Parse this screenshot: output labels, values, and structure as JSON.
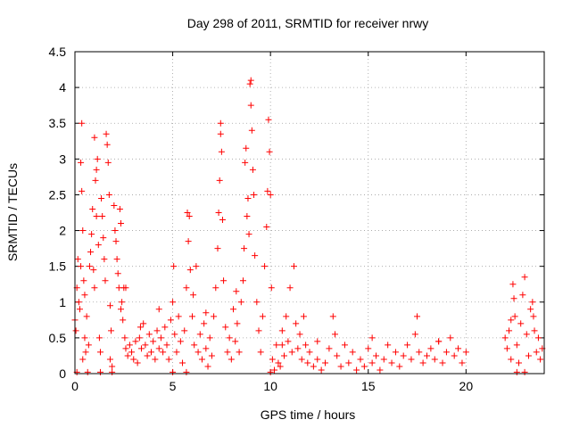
{
  "chart_data": {
    "type": "scatter",
    "title": "Day 298 of 2011, SRMTID for receiver nrwy",
    "xlabel": "GPS time / hours",
    "ylabel": "SRMTID / TECUs",
    "xlim": [
      0,
      24
    ],
    "ylim": [
      0,
      4.5
    ],
    "xticks": [
      "0",
      "5",
      "10",
      "15",
      "20"
    ],
    "yticks": [
      "0",
      "0.5",
      "1",
      "1.5",
      "2",
      "2.5",
      "3",
      "3.5",
      "4",
      "4.5"
    ],
    "grid": true,
    "marker": "plus",
    "color": "#ff0000",
    "series": [
      {
        "points": [
          [
            0.0,
            0.75
          ],
          [
            0.05,
            0.6
          ],
          [
            0.1,
            1.2
          ],
          [
            0.15,
            1.6
          ],
          [
            0.2,
            1.0
          ],
          [
            0.25,
            0.9
          ],
          [
            0.3,
            1.5
          ],
          [
            0.35,
            3.5
          ],
          [
            0.3,
            2.95
          ],
          [
            0.35,
            2.55
          ],
          [
            0.4,
            2.0
          ],
          [
            0.45,
            1.3
          ],
          [
            0.5,
            1.1
          ],
          [
            0.4,
            0.2
          ],
          [
            0.5,
            0.5
          ],
          [
            0.55,
            0.3
          ],
          [
            0.6,
            0.8
          ],
          [
            0.7,
            0.4
          ],
          [
            0.75,
            1.5
          ],
          [
            0.8,
            1.7
          ],
          [
            0.85,
            1.95
          ],
          [
            0.9,
            2.3
          ],
          [
            0.95,
            1.45
          ],
          [
            1.0,
            1.2
          ],
          [
            1.0,
            3.3
          ],
          [
            1.05,
            2.7
          ],
          [
            1.1,
            2.85
          ],
          [
            1.15,
            3.0
          ],
          [
            1.1,
            2.2
          ],
          [
            1.2,
            1.8
          ],
          [
            1.25,
            0.5
          ],
          [
            1.3,
            0.3
          ],
          [
            1.35,
            2.45
          ],
          [
            1.4,
            2.2
          ],
          [
            1.45,
            1.9
          ],
          [
            1.5,
            1.6
          ],
          [
            1.55,
            1.3
          ],
          [
            1.6,
            3.35
          ],
          [
            1.65,
            3.2
          ],
          [
            1.7,
            2.95
          ],
          [
            1.75,
            2.5
          ],
          [
            1.8,
            0.95
          ],
          [
            1.85,
            0.6
          ],
          [
            1.8,
            0.2
          ],
          [
            1.9,
            0.1
          ],
          [
            2.0,
            2.35
          ],
          [
            2.05,
            2.0
          ],
          [
            2.1,
            1.85
          ],
          [
            2.15,
            1.6
          ],
          [
            2.2,
            1.4
          ],
          [
            2.25,
            1.2
          ],
          [
            2.3,
            2.3
          ],
          [
            2.35,
            2.1
          ],
          [
            2.4,
            1.0
          ],
          [
            2.45,
            0.75
          ],
          [
            2.5,
            1.2
          ],
          [
            2.55,
            0.5
          ],
          [
            2.6,
            0.35
          ],
          [
            2.7,
            0.25
          ],
          [
            2.8,
            0.4
          ],
          [
            2.9,
            0.3
          ],
          [
            3.0,
            0.2
          ],
          [
            3.1,
            0.45
          ],
          [
            3.2,
            0.15
          ],
          [
            3.3,
            0.5
          ],
          [
            3.4,
            0.35
          ],
          [
            3.5,
            0.7
          ],
          [
            3.6,
            0.4
          ],
          [
            3.7,
            0.25
          ],
          [
            3.8,
            0.55
          ],
          [
            3.9,
            0.3
          ],
          [
            4.0,
            0.45
          ],
          [
            4.1,
            0.2
          ],
          [
            4.2,
            0.6
          ],
          [
            4.3,
            0.35
          ],
          [
            4.4,
            0.5
          ],
          [
            4.5,
            0.3
          ],
          [
            4.6,
            0.65
          ],
          [
            4.7,
            0.4
          ],
          [
            4.8,
            0.2
          ],
          [
            4.9,
            0.75
          ],
          [
            5.0,
            1.0
          ],
          [
            5.05,
            1.5
          ],
          [
            5.1,
            0.55
          ],
          [
            5.2,
            0.3
          ],
          [
            5.3,
            0.8
          ],
          [
            5.4,
            0.45
          ],
          [
            5.5,
            0.15
          ],
          [
            5.6,
            0.6
          ],
          [
            5.7,
            1.2
          ],
          [
            5.75,
            2.25
          ],
          [
            5.8,
            1.85
          ],
          [
            5.85,
            2.2
          ],
          [
            5.9,
            1.45
          ],
          [
            6.0,
            0.8
          ],
          [
            6.1,
            0.4
          ],
          [
            6.2,
            1.5
          ],
          [
            6.3,
            0.3
          ],
          [
            6.4,
            0.55
          ],
          [
            6.5,
            0.2
          ],
          [
            6.6,
            0.7
          ],
          [
            6.7,
            0.35
          ],
          [
            6.8,
            0.1
          ],
          [
            6.9,
            0.5
          ],
          [
            7.0,
            0.25
          ],
          [
            7.1,
            0.8
          ],
          [
            7.2,
            1.2
          ],
          [
            7.3,
            1.75
          ],
          [
            7.35,
            2.25
          ],
          [
            7.4,
            2.7
          ],
          [
            7.45,
            3.5
          ],
          [
            7.5,
            3.1
          ],
          [
            7.45,
            3.35
          ],
          [
            7.55,
            2.15
          ],
          [
            7.6,
            1.3
          ],
          [
            7.7,
            0.65
          ],
          [
            7.8,
            0.3
          ],
          [
            7.9,
            0.5
          ],
          [
            8.0,
            0.2
          ],
          [
            8.1,
            0.9
          ],
          [
            8.2,
            0.45
          ],
          [
            8.3,
            0.7
          ],
          [
            8.4,
            0.3
          ],
          [
            8.5,
            1.0
          ],
          [
            8.6,
            1.3
          ],
          [
            8.65,
            1.75
          ],
          [
            8.7,
            2.95
          ],
          [
            8.75,
            3.15
          ],
          [
            8.8,
            2.2
          ],
          [
            8.85,
            2.45
          ],
          [
            8.9,
            1.95
          ],
          [
            8.95,
            4.05
          ],
          [
            9.0,
            4.1
          ],
          [
            9.0,
            3.75
          ],
          [
            9.05,
            3.4
          ],
          [
            9.1,
            2.85
          ],
          [
            9.15,
            2.5
          ],
          [
            9.2,
            1.65
          ],
          [
            9.3,
            1.0
          ],
          [
            9.4,
            0.6
          ],
          [
            9.5,
            0.3
          ],
          [
            9.6,
            0.8
          ],
          [
            9.7,
            1.5
          ],
          [
            9.8,
            2.05
          ],
          [
            9.85,
            2.55
          ],
          [
            9.9,
            3.55
          ],
          [
            9.95,
            3.1
          ],
          [
            10.0,
            2.5
          ],
          [
            10.05,
            1.2
          ],
          [
            10.1,
            0.2
          ],
          [
            10.2,
            0.05
          ],
          [
            10.3,
            0.4
          ],
          [
            10.4,
            0.15
          ],
          [
            10.5,
            0.1
          ],
          [
            10.6,
            0.6
          ],
          [
            10.7,
            0.25
          ],
          [
            10.8,
            0.8
          ],
          [
            10.9,
            0.45
          ],
          [
            11.0,
            1.2
          ],
          [
            11.1,
            0.3
          ],
          [
            11.2,
            1.5
          ],
          [
            11.3,
            0.7
          ],
          [
            11.4,
            0.35
          ],
          [
            11.5,
            0.55
          ],
          [
            11.6,
            0.2
          ],
          [
            11.7,
            0.8
          ],
          [
            11.8,
            0.4
          ],
          [
            11.9,
            0.15
          ],
          [
            12.0,
            0.3
          ],
          [
            12.2,
            0.1
          ],
          [
            12.4,
            0.2
          ],
          [
            12.6,
            0.05
          ],
          [
            12.8,
            0.15
          ],
          [
            13.0,
            0.35
          ],
          [
            13.2,
            0.8
          ],
          [
            13.3,
            0.55
          ],
          [
            13.4,
            0.25
          ],
          [
            13.6,
            0.1
          ],
          [
            13.8,
            0.4
          ],
          [
            14.0,
            0.15
          ],
          [
            14.2,
            0.3
          ],
          [
            14.4,
            0.05
          ],
          [
            14.6,
            0.2
          ],
          [
            14.8,
            0.1
          ],
          [
            15.0,
            0.35
          ],
          [
            15.2,
            0.15
          ],
          [
            15.4,
            0.25
          ],
          [
            15.6,
            0.05
          ],
          [
            15.8,
            0.2
          ],
          [
            16.0,
            0.4
          ],
          [
            16.2,
            0.15
          ],
          [
            16.4,
            0.3
          ],
          [
            16.6,
            0.1
          ],
          [
            16.8,
            0.25
          ],
          [
            17.0,
            0.4
          ],
          [
            17.2,
            0.2
          ],
          [
            17.4,
            0.55
          ],
          [
            17.5,
            0.8
          ],
          [
            17.6,
            0.3
          ],
          [
            17.8,
            0.15
          ],
          [
            18.0,
            0.25
          ],
          [
            18.2,
            0.35
          ],
          [
            18.4,
            0.2
          ],
          [
            18.6,
            0.45
          ],
          [
            18.8,
            0.15
          ],
          [
            19.0,
            0.3
          ],
          [
            19.2,
            0.5
          ],
          [
            19.4,
            0.25
          ],
          [
            19.6,
            0.35
          ],
          [
            19.8,
            0.15
          ],
          [
            20.0,
            0.3
          ],
          [
            22.0,
            0.5
          ],
          [
            22.1,
            0.35
          ],
          [
            22.2,
            0.6
          ],
          [
            22.3,
            0.2
          ],
          [
            22.4,
            1.25
          ],
          [
            22.45,
            1.05
          ],
          [
            22.5,
            0.8
          ],
          [
            22.6,
            0.4
          ],
          [
            22.7,
            0.15
          ],
          [
            22.8,
            0.7
          ],
          [
            22.9,
            1.1
          ],
          [
            23.0,
            1.35
          ],
          [
            23.1,
            0.55
          ],
          [
            23.2,
            0.25
          ],
          [
            23.3,
            0.9
          ],
          [
            23.4,
            1.0
          ],
          [
            23.5,
            0.6
          ],
          [
            23.6,
            0.3
          ],
          [
            23.7,
            0.5
          ],
          [
            23.8,
            0.2
          ],
          [
            23.9,
            0.35
          ],
          [
            0.1,
            0.02
          ],
          [
            0.65,
            0.02
          ],
          [
            1.3,
            0.02
          ],
          [
            1.9,
            0.02
          ],
          [
            5.0,
            0.02
          ],
          [
            5.7,
            0.02
          ],
          [
            10.0,
            0.02
          ],
          [
            22.6,
            0.02
          ],
          [
            23.0,
            0.02
          ],
          [
            2.35,
            0.9
          ],
          [
            2.6,
            1.2
          ],
          [
            3.35,
            0.65
          ],
          [
            4.3,
            0.9
          ],
          [
            6.05,
            1.1
          ],
          [
            6.7,
            0.85
          ],
          [
            8.25,
            1.15
          ],
          [
            10.6,
            0.4
          ],
          [
            12.4,
            0.45
          ],
          [
            15.2,
            0.5
          ],
          [
            18.6,
            0.45
          ],
          [
            22.3,
            0.75
          ],
          [
            23.45,
            0.8
          ]
        ]
      }
    ]
  }
}
